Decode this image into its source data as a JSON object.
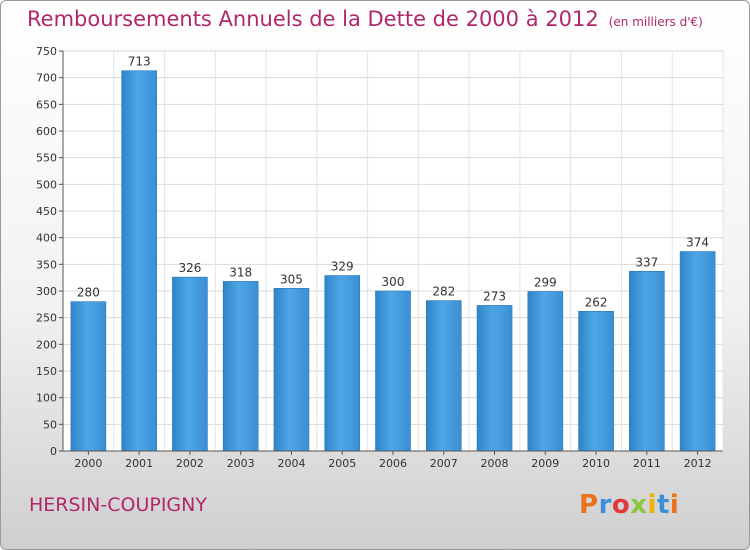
{
  "header": {
    "title": "Remboursements Annuels de la Dette de 2000 à 2012",
    "unit": "(en milliers d'€)"
  },
  "footer": {
    "city": "HERSIN-COUPIGNY",
    "logo_letters": [
      "P",
      "r",
      "o",
      "x",
      "i",
      "t",
      "i"
    ],
    "logo_colors": [
      "#e8731a",
      "#3a8fd6",
      "#e03a3a",
      "#8cc63f",
      "#f0b400",
      "#3a8fd6",
      "#e8731a"
    ]
  },
  "chart_data": {
    "type": "bar",
    "title": "Remboursements Annuels de la Dette de 2000 à 2012",
    "subtitle": "(en milliers d'€)",
    "xlabel": "",
    "ylabel": "",
    "categories": [
      "2000",
      "2001",
      "2002",
      "2003",
      "2004",
      "2005",
      "2006",
      "2007",
      "2008",
      "2009",
      "2010",
      "2011",
      "2012"
    ],
    "values": [
      280,
      713,
      326,
      318,
      305,
      329,
      300,
      282,
      273,
      299,
      262,
      337,
      374
    ],
    "ylim": [
      0,
      750
    ],
    "yticks": [
      0,
      50,
      100,
      150,
      200,
      250,
      300,
      350,
      400,
      450,
      500,
      550,
      600,
      650,
      700,
      750
    ],
    "grid": true,
    "bar_color": "#3d93d6"
  }
}
